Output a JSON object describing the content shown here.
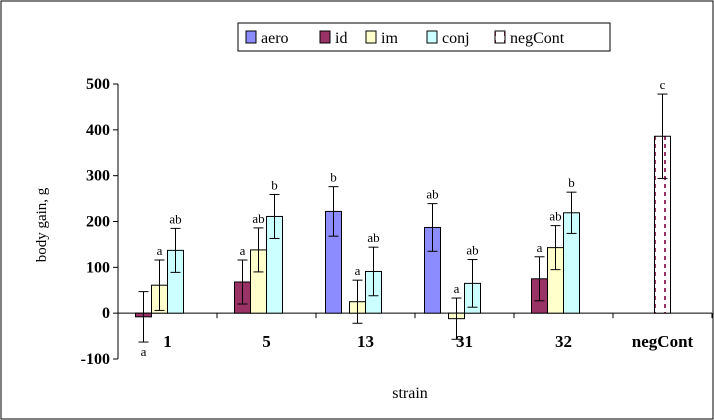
{
  "chart_data": {
    "type": "bar",
    "title": "",
    "xlabel": "strain",
    "ylabel": "body gain, g",
    "ylim": [
      -100,
      500
    ],
    "yticks": [
      500,
      400,
      300,
      200,
      100,
      0,
      -100
    ],
    "grid": false,
    "legend_position": "top-center",
    "categories": [
      "1",
      "5",
      "13",
      "31",
      "32",
      "negCont"
    ],
    "series": [
      {
        "name": "aero",
        "color": "#8c8cff",
        "pattern": "solid",
        "values": [
          null,
          null,
          222,
          187,
          null,
          null
        ],
        "errors": [
          null,
          null,
          54,
          52,
          null,
          null
        ],
        "labels": [
          null,
          null,
          "b",
          "ab",
          null,
          null
        ]
      },
      {
        "name": "id",
        "color": "#993366",
        "pattern": "solid",
        "values": [
          -8,
          68,
          null,
          null,
          75,
          null
        ],
        "errors": [
          55,
          48,
          null,
          null,
          48,
          null
        ],
        "labels": [
          "a",
          "a",
          null,
          null,
          "a",
          null
        ]
      },
      {
        "name": "im",
        "color": "#ffffcc",
        "pattern": "solid",
        "values": [
          61,
          138,
          25,
          -12,
          143,
          null
        ],
        "errors": [
          55,
          48,
          47,
          45,
          48,
          null
        ],
        "labels": [
          "a",
          "ab",
          "a",
          "a",
          "ab",
          null
        ]
      },
      {
        "name": "conj",
        "color": "#ccffff",
        "pattern": "solid",
        "values": [
          137,
          211,
          91,
          65,
          219,
          null
        ],
        "errors": [
          48,
          48,
          53,
          52,
          45,
          null
        ],
        "labels": [
          "ab",
          "b",
          "ab",
          "ab",
          "b",
          null
        ]
      },
      {
        "name": "negCont",
        "color": "#993366",
        "pattern": "dashed",
        "values": [
          null,
          null,
          null,
          null,
          null,
          386
        ],
        "errors": [
          null,
          null,
          null,
          null,
          null,
          92
        ],
        "labels": [
          null,
          null,
          null,
          null,
          null,
          "c"
        ]
      }
    ]
  }
}
